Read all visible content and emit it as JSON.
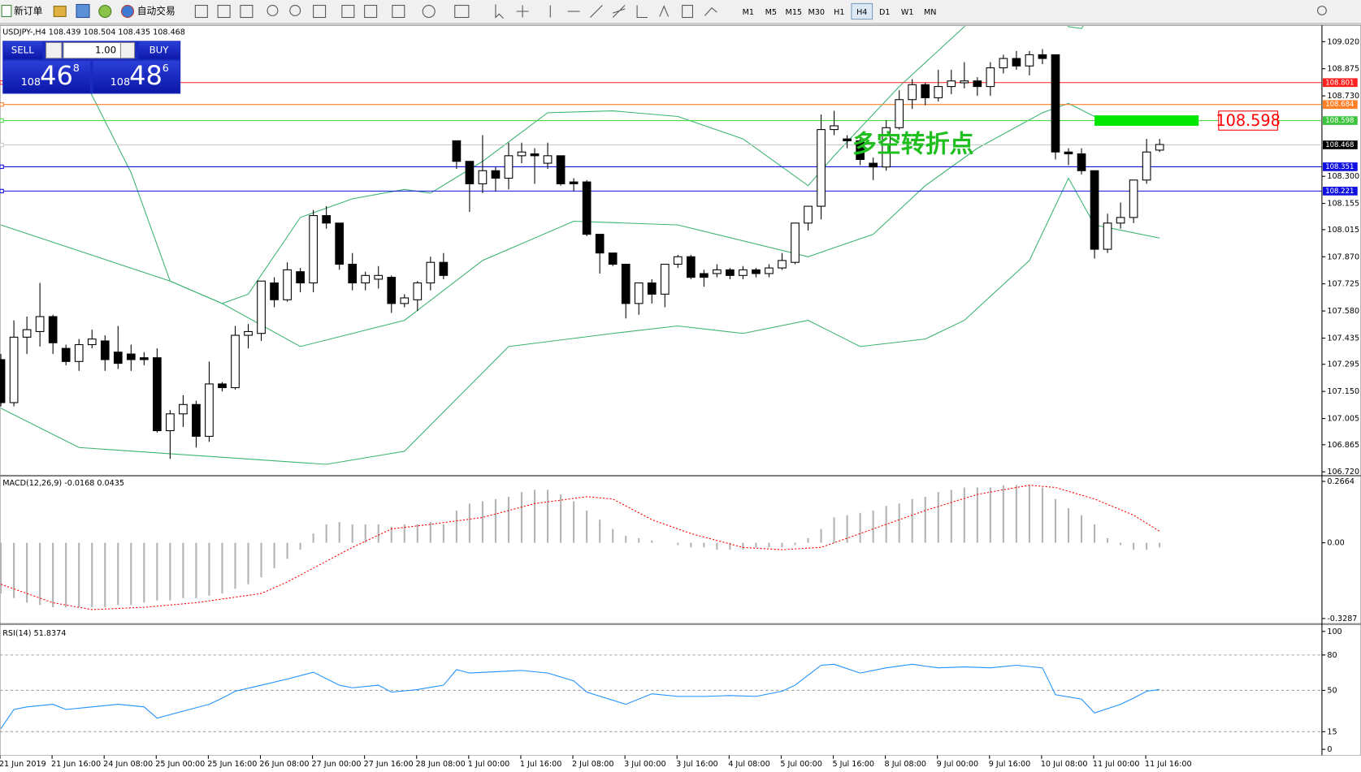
{
  "toolbar": {
    "new_order": "新订单",
    "auto_trading": "自动交易",
    "timeframes": [
      "M1",
      "M5",
      "M15",
      "M30",
      "H1",
      "H4",
      "D1",
      "W1",
      "MN"
    ],
    "active_timeframe": "H4"
  },
  "trade_panel": {
    "sell": "SELL",
    "buy": "BUY",
    "lots": "1.00",
    "bid": {
      "big": "108",
      "main": "46",
      "pip": "8"
    },
    "ask": {
      "big": "108",
      "main": "48",
      "pip": "6"
    }
  },
  "chart_data": [
    {
      "type": "candlestick",
      "title": "USDJPY-,H4  108.439 108.504 108.435 108.468",
      "categories": [
        "21 Jun 2019",
        null,
        null,
        null,
        "21 Jun 16:00",
        null,
        null,
        null,
        "24 Jun 08:00",
        null,
        null,
        null,
        "25 Jun 00:00",
        null,
        null,
        null,
        "25 Jun 16:00",
        null,
        null,
        null,
        "26 Jun 08:00",
        null,
        null,
        null,
        "27 Jun 00:00",
        null,
        null,
        null,
        "27 Jun 16:00",
        null,
        null,
        null,
        "28 Jun 08:00",
        null,
        null,
        null,
        "1 Jul 00:00",
        null,
        null,
        null,
        "1 Jul 16:00",
        null,
        null,
        null,
        "2 Jul 08:00",
        null,
        null,
        null,
        "3 Jul 00:00",
        null,
        null,
        null,
        "3 Jul 16:00",
        null,
        null,
        null,
        "4 Jul 08:00",
        null,
        null,
        null,
        "5 Jul 00:00",
        null,
        null,
        null,
        "5 Jul 16:00",
        null,
        null,
        null,
        "8 Jul 08:00",
        null,
        null,
        null,
        "9 Jul 00:00",
        null,
        null,
        null,
        "9 Jul 16:00",
        null,
        null,
        null,
        "10 Jul 08:00",
        null,
        null,
        null,
        "11 Jul 00:00",
        null,
        null,
        null,
        "11 Jul 16:00",
        null
      ],
      "open": [
        107.32,
        107.09,
        107.44,
        107.47,
        107.55,
        107.38,
        107.31,
        107.4,
        107.42,
        107.36,
        107.35,
        107.33,
        107.33,
        106.94,
        107.03,
        107.08,
        106.91,
        107.19,
        107.17,
        107.45,
        107.46,
        107.73,
        107.64,
        107.79,
        107.73,
        108.09,
        108.05,
        107.83,
        107.73,
        107.75,
        107.76,
        107.62,
        107.64,
        107.73,
        107.84,
        108.49,
        108.38,
        108.26,
        108.33,
        108.29,
        108.41,
        108.42,
        108.37,
        108.41,
        108.27,
        108.27,
        107.99,
        107.89,
        107.83,
        107.62,
        107.73,
        107.67,
        107.83,
        107.87,
        107.78,
        107.78,
        107.8,
        107.77,
        107.8,
        107.78,
        107.81,
        107.84,
        108.05,
        108.14,
        108.55,
        108.5,
        108.49,
        108.37,
        108.35,
        108.56,
        108.71,
        108.79,
        108.72,
        108.78,
        108.8,
        108.81,
        108.78,
        108.88,
        108.93,
        108.89,
        108.95,
        108.95,
        108.43,
        108.42,
        108.33,
        107.91,
        108.05,
        108.08,
        108.28,
        108.44
      ],
      "high": [
        107.35,
        107.53,
        107.55,
        107.73,
        107.56,
        107.4,
        107.43,
        107.48,
        107.45,
        107.5,
        107.4,
        107.36,
        107.38,
        107.05,
        107.13,
        107.1,
        107.31,
        107.2,
        107.5,
        107.51,
        107.74,
        107.76,
        107.84,
        107.81,
        108.12,
        108.14,
        108.05,
        107.89,
        107.79,
        107.82,
        107.77,
        107.67,
        107.74,
        107.87,
        107.89,
        108.49,
        108.38,
        108.52,
        108.35,
        108.48,
        108.48,
        108.45,
        108.48,
        108.41,
        108.29,
        108.28,
        107.99,
        107.89,
        107.83,
        107.73,
        107.75,
        107.83,
        107.88,
        107.88,
        107.8,
        107.83,
        107.81,
        107.82,
        107.81,
        107.83,
        107.89,
        108.05,
        108.14,
        108.63,
        108.65,
        108.52,
        108.5,
        108.4,
        108.6,
        108.76,
        108.82,
        108.8,
        108.87,
        108.87,
        108.91,
        108.83,
        108.91,
        108.95,
        108.97,
        108.97,
        108.98,
        108.95,
        108.45,
        108.45,
        108.33,
        108.1,
        108.16,
        108.28,
        108.5,
        108.5
      ],
      "low": [
        107.07,
        107.07,
        107.35,
        107.39,
        107.35,
        107.29,
        107.26,
        107.38,
        107.26,
        107.27,
        107.26,
        107.29,
        106.93,
        106.79,
        106.96,
        106.85,
        106.88,
        107.15,
        107.16,
        107.38,
        107.42,
        107.6,
        107.63,
        107.68,
        107.68,
        108.02,
        107.8,
        107.69,
        107.69,
        107.7,
        107.57,
        107.6,
        107.58,
        107.69,
        107.75,
        108.34,
        108.11,
        108.21,
        108.22,
        108.23,
        108.37,
        108.26,
        108.34,
        108.25,
        108.22,
        107.98,
        107.78,
        107.82,
        107.54,
        107.56,
        107.62,
        107.6,
        107.81,
        107.75,
        107.71,
        107.76,
        107.75,
        107.75,
        107.76,
        107.76,
        107.8,
        107.83,
        108.01,
        108.07,
        108.52,
        108.45,
        108.36,
        108.28,
        108.33,
        108.55,
        108.66,
        108.68,
        108.7,
        108.74,
        108.77,
        108.73,
        108.73,
        108.85,
        108.87,
        108.84,
        108.9,
        108.39,
        108.36,
        108.31,
        107.86,
        107.89,
        108.02,
        108.05,
        108.26,
        108.43
      ],
      "close": [
        107.09,
        107.44,
        107.48,
        107.55,
        107.41,
        107.31,
        107.4,
        107.43,
        107.32,
        107.3,
        107.32,
        107.32,
        106.94,
        107.03,
        107.08,
        106.91,
        107.19,
        107.17,
        107.45,
        107.47,
        107.74,
        107.64,
        107.8,
        107.73,
        108.09,
        108.05,
        107.83,
        107.73,
        107.77,
        107.77,
        107.62,
        107.65,
        107.73,
        107.84,
        107.77,
        108.38,
        108.26,
        108.33,
        108.29,
        108.41,
        108.43,
        108.41,
        108.41,
        108.26,
        108.26,
        107.99,
        107.89,
        107.83,
        107.62,
        107.73,
        107.67,
        107.83,
        107.87,
        107.76,
        107.76,
        107.8,
        107.77,
        107.8,
        107.78,
        107.81,
        107.85,
        108.05,
        108.14,
        108.55,
        108.57,
        108.49,
        108.39,
        108.35,
        108.56,
        108.71,
        108.79,
        108.72,
        108.78,
        108.81,
        108.81,
        108.78,
        108.88,
        108.93,
        108.89,
        108.95,
        108.93,
        108.43,
        108.42,
        108.33,
        107.91,
        108.05,
        108.08,
        108.28,
        108.43,
        108.47
      ],
      "up_color": "#ffffff",
      "down_color": "#000000",
      "bands": [
        {
          "color": "#3cb371",
          "x": [
            6,
            10,
            13,
            17,
            19,
            23,
            27,
            31,
            33,
            37,
            42,
            47,
            52,
            57,
            62,
            64,
            69,
            74,
            77,
            82,
            83,
            85
          ],
          "values": [
            108.87,
            108.32,
            107.74,
            107.62,
            107.67,
            108.08,
            108.18,
            108.23,
            108.21,
            108.38,
            108.64,
            108.65,
            108.62,
            108.5,
            108.25,
            108.41,
            108.78,
            109.1,
            109.4,
            109.1,
            109.09,
            109.3
          ]
        },
        {
          "color": "#3cb371",
          "x": [
            0,
            13,
            17,
            23,
            31,
            37,
            44,
            52,
            62,
            67,
            71,
            75,
            80,
            82,
            84,
            89
          ],
          "values": [
            108.04,
            107.74,
            107.62,
            107.39,
            107.53,
            107.85,
            108.06,
            108.04,
            107.87,
            107.99,
            108.25,
            108.45,
            108.64,
            108.69,
            108.62,
            108.6
          ]
        },
        {
          "color": "#3cb371",
          "x": [
            0,
            6,
            25,
            31,
            39,
            47,
            52,
            57,
            62,
            66,
            71,
            74,
            79,
            82,
            84,
            89
          ],
          "values": [
            107.06,
            106.85,
            106.76,
            106.83,
            107.39,
            107.46,
            107.5,
            107.46,
            107.53,
            107.39,
            107.43,
            107.53,
            107.85,
            108.29,
            108.04,
            107.97
          ]
        }
      ],
      "hlines": [
        {
          "value": 108.801,
          "color": "#ff2020",
          "tag_color": "#ff2020"
        },
        {
          "value": 108.684,
          "color": "#ff7f27",
          "tag_color": "#ff7f27"
        },
        {
          "value": 108.598,
          "color": "#4cd94c",
          "tag_color": "#3cc43c"
        },
        {
          "value": 108.468,
          "color": "#c8c8c8",
          "tag_color": "#000000"
        },
        {
          "value": 108.351,
          "color": "#1010e0",
          "tag_color": "#1010e0"
        },
        {
          "value": 108.221,
          "color": "#1010e0",
          "tag_color": "#1010e0"
        }
      ],
      "level_marker": {
        "value": 108.598,
        "color": "#00e600",
        "label_color": "#ff0000"
      },
      "annotation": {
        "text": "多空转折点",
        "color": "#1fbf1f"
      },
      "ylim": [
        106.706,
        109.103
      ],
      "yticks": [
        {
          "value": 109.02,
          "label": "109.020"
        },
        108.875,
        {
          "value": 108.73,
          "label": "108.730"
        },
        {
          "value": 108.3,
          "label": "108.300"
        },
        108.155,
        108.015,
        {
          "value": 107.87,
          "label": "107.870"
        },
        107.725,
        {
          "value": 107.58,
          "label": "107.580"
        },
        107.435,
        107.295,
        {
          "value": 107.15,
          "label": "107.150"
        },
        107.005,
        106.865,
        {
          "value": 106.72,
          "label": "106.720"
        }
      ]
    },
    {
      "type": "macd",
      "title": "MACD(12,26,9) -0.0168 0.0435",
      "ylim": [
        -0.347,
        0.289
      ],
      "yticks": [
        0.2664,
        {
          "value": 0,
          "label": "0.00"
        },
        -0.3287
      ],
      "histogram": {
        "color": "#b4b4b4",
        "values": [
          -0.22,
          -0.24,
          -0.26,
          -0.27,
          -0.28,
          -0.28,
          -0.28,
          -0.28,
          -0.28,
          -0.27,
          -0.27,
          -0.26,
          -0.25,
          -0.25,
          -0.24,
          -0.24,
          -0.23,
          -0.22,
          -0.2,
          -0.18,
          -0.15,
          -0.11,
          -0.07,
          -0.03,
          0.04,
          0.08,
          0.09,
          0.08,
          0.08,
          0.08,
          0.07,
          0.08,
          0.08,
          0.09,
          0.08,
          0.14,
          0.17,
          0.18,
          0.19,
          0.2,
          0.22,
          0.23,
          0.23,
          0.21,
          0.18,
          0.14,
          0.1,
          0.06,
          0.03,
          0.02,
          0.01,
          0.0,
          -0.01,
          -0.02,
          -0.02,
          -0.03,
          -0.03,
          -0.03,
          -0.02,
          -0.02,
          -0.02,
          -0.01,
          0.02,
          0.06,
          0.11,
          0.12,
          0.13,
          0.14,
          0.16,
          0.17,
          0.19,
          0.2,
          0.22,
          0.23,
          0.24,
          0.24,
          0.24,
          0.25,
          0.25,
          0.25,
          0.24,
          0.19,
          0.15,
          0.12,
          0.08,
          0.02,
          -0.01,
          -0.03,
          -0.03,
          -0.02
        ]
      },
      "signal": {
        "color": "#ff0000",
        "x": [
          0,
          4,
          7,
          11,
          15,
          20,
          22,
          27,
          30,
          33,
          37,
          41,
          45,
          47,
          50,
          53,
          57,
          60,
          63,
          67,
          71,
          75,
          79,
          81,
          84,
          87,
          89
        ],
        "values": [
          -0.18,
          -0.26,
          -0.29,
          -0.28,
          -0.26,
          -0.22,
          -0.17,
          -0.02,
          0.06,
          0.08,
          0.11,
          0.17,
          0.2,
          0.19,
          0.1,
          0.04,
          -0.02,
          -0.03,
          -0.02,
          0.06,
          0.14,
          0.21,
          0.25,
          0.24,
          0.19,
          0.12,
          0.05
        ]
      }
    },
    {
      "type": "line",
      "title": "RSI(14) 51.8374",
      "ylim": [
        -4.4,
        104.4
      ],
      "yticks": [
        100,
        80,
        50,
        15,
        0
      ],
      "levels": [
        80,
        50,
        15
      ],
      "series": [
        {
          "color": "#1e90ff",
          "x": [
            0,
            1,
            2,
            4,
            5,
            7,
            9,
            11,
            12,
            14,
            16,
            17,
            18,
            20,
            22,
            24,
            26,
            27,
            29,
            30,
            32,
            34,
            35,
            36,
            40,
            42,
            44,
            45,
            48,
            50,
            52,
            54,
            56,
            58,
            60,
            61,
            63,
            64,
            66,
            68,
            70,
            72,
            74,
            76,
            78,
            80,
            81,
            83,
            84,
            86,
            87,
            88,
            89
          ],
          "values": [
            17.6,
            33.8,
            36.0,
            38.2,
            33.8,
            36.0,
            38.2,
            36.0,
            26.5,
            32.4,
            38.2,
            43.4,
            49.3,
            54.4,
            59.6,
            65.4,
            54.4,
            52.2,
            54.4,
            48.5,
            50.7,
            54.4,
            67.6,
            64.7,
            66.9,
            64.7,
            58.1,
            48.5,
            38.2,
            47.1,
            44.9,
            44.9,
            45.6,
            44.9,
            49.3,
            54.4,
            71.3,
            72.1,
            64.7,
            69.1,
            72.1,
            69.1,
            69.9,
            69.1,
            71.3,
            69.1,
            46.3,
            42.6,
            30.9,
            38.2,
            43.4,
            49.3,
            50.7
          ]
        }
      ]
    }
  ]
}
